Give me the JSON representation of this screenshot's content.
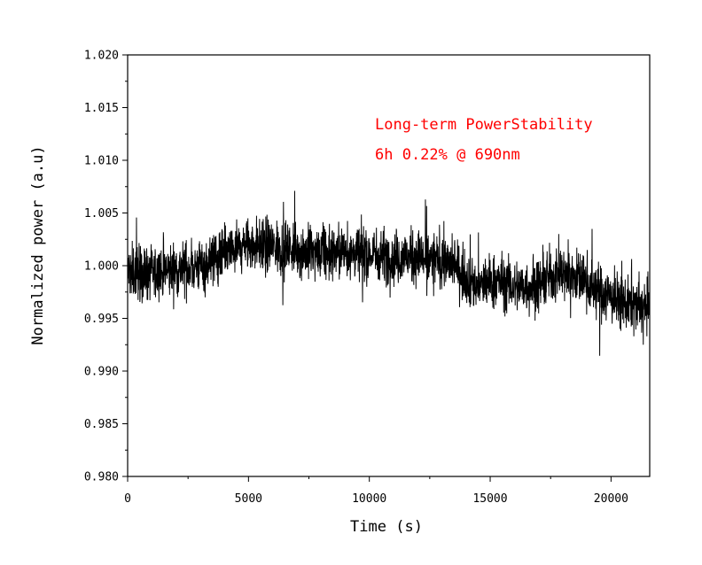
{
  "chart_data": {
    "type": "line",
    "title": "",
    "xlabel": "Time (s)",
    "ylabel": "Normalized power (a.u)",
    "xlim": [
      0,
      21600
    ],
    "ylim": [
      0.98,
      1.02
    ],
    "x_ticks": [
      0,
      5000,
      10000,
      15000,
      20000
    ],
    "x_tick_labels": [
      "0",
      "5000",
      "10000",
      "15000",
      "20000"
    ],
    "y_ticks": [
      0.98,
      0.985,
      0.99,
      0.995,
      1.0,
      1.005,
      1.01,
      1.015,
      1.02
    ],
    "y_tick_labels": [
      "0.980",
      "0.985",
      "0.990",
      "0.995",
      "1.000",
      "1.005",
      "1.010",
      "1.015",
      "1.020"
    ],
    "grid": false,
    "line_color": "#000000",
    "annotations": [
      {
        "text": "Long-term PowerStability",
        "color": "#ff0000"
      },
      {
        "text": "6h 0.22% @ 690nm",
        "color": "#ff0000"
      }
    ],
    "series": [
      {
        "x": [
          0,
          500,
          1000,
          1500,
          2000,
          2500,
          3000,
          3500,
          4000,
          4500,
          5000,
          5500,
          6000,
          6500,
          7000,
          7500,
          8000,
          8500,
          9000,
          9500,
          10000,
          10500,
          11000,
          11500,
          12000,
          12500,
          13000,
          13500,
          14000,
          14500,
          15000,
          15500,
          16000,
          16500,
          17000,
          17500,
          18000,
          18500,
          19000,
          19500,
          20000,
          20500,
          21000,
          21500
        ],
        "values": [
          0.9995,
          0.9993,
          0.9992,
          0.9994,
          0.9996,
          0.9998,
          1.0,
          1.0005,
          1.001,
          1.0015,
          1.002,
          1.002,
          1.0018,
          1.0016,
          1.0015,
          1.0012,
          1.001,
          1.0012,
          1.0013,
          1.0012,
          1.001,
          1.001,
          1.0008,
          1.0008,
          1.0008,
          1.0006,
          1.0005,
          1.0,
          0.999,
          0.998,
          0.9985,
          0.9985,
          0.998,
          0.998,
          0.9982,
          0.999,
          0.9995,
          0.999,
          0.9985,
          0.9975,
          0.997,
          0.9965,
          0.996,
          0.996
        ],
        "noise_amplitude": 0.0015
      }
    ]
  }
}
